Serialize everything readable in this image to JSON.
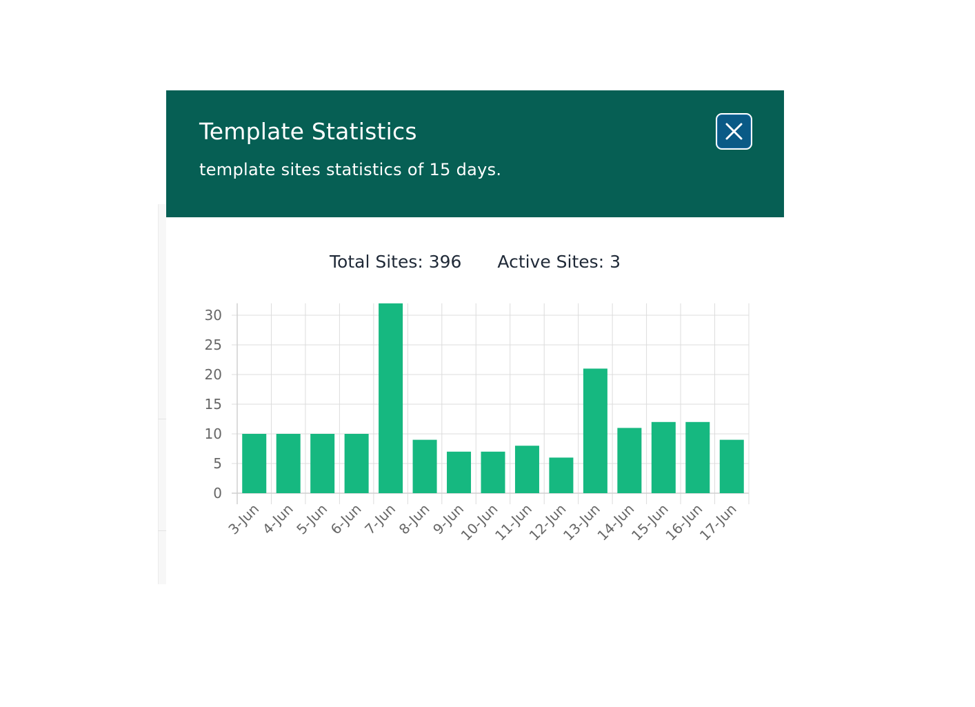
{
  "modal": {
    "title": "Template Statistics",
    "subtitle": "template sites statistics of 15 days.",
    "close_icon": "close-icon"
  },
  "stats": {
    "total_label": "Total Sites: 396",
    "active_label": "Active Sites: 3"
  },
  "colors": {
    "header_bg": "#065f54",
    "bar": "#16b880",
    "close_bg": "#0a5a86"
  },
  "chart_data": {
    "type": "bar",
    "categories": [
      "3-Jun",
      "4-Jun",
      "5-Jun",
      "6-Jun",
      "7-Jun",
      "8-Jun",
      "9-Jun",
      "10-Jun",
      "11-Jun",
      "12-Jun",
      "13-Jun",
      "14-Jun",
      "15-Jun",
      "16-Jun",
      "17-Jun"
    ],
    "values": [
      10,
      10,
      10,
      10,
      32,
      9,
      7,
      7,
      8,
      6,
      21,
      11,
      12,
      12,
      9
    ],
    "yticks": [
      0,
      5,
      10,
      15,
      20,
      25,
      30
    ],
    "ylim": [
      0,
      32
    ],
    "grid": true
  }
}
